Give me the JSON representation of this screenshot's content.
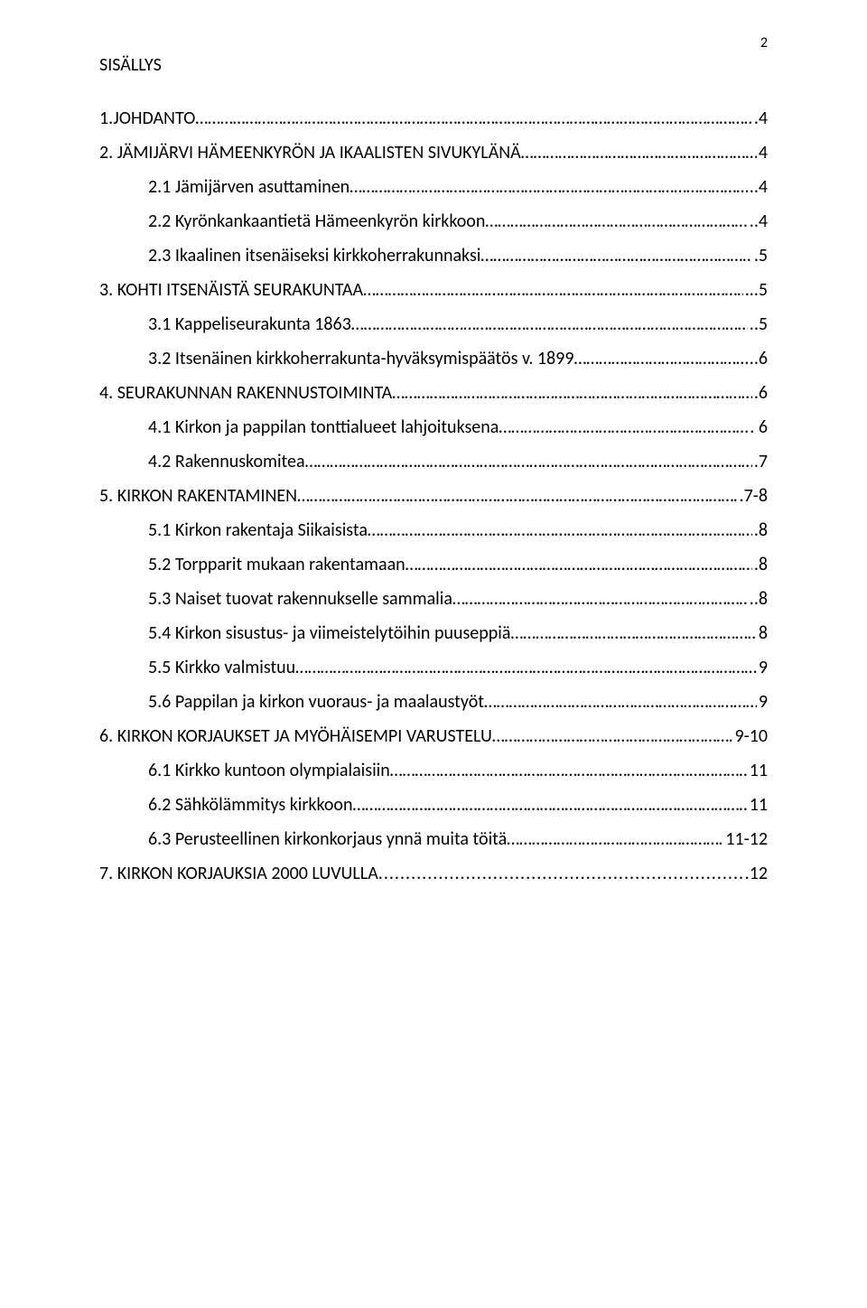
{
  "page_number": "2",
  "title": "SISÄLLYS",
  "entries": [
    {
      "level": 1,
      "label": "1.JOHDANTO",
      "page": ".4",
      "leader": "dots"
    },
    {
      "level": 1,
      "label": "2. JÄMIJÄRVI HÄMEENKYRÖN JA IKAALISTEN SIVUKYLÄNÄ",
      "page": "4",
      "leader": "dots"
    },
    {
      "level": 2,
      "label": "2.1 Jämijärven asuttaminen",
      "page": "..4",
      "leader": "dots"
    },
    {
      "level": 2,
      "label": "2.2 Kyrönkankaantietä Hämeenkyrön kirkkoon",
      "page": "..4",
      "leader": "dots"
    },
    {
      "level": 2,
      "label": "2.3 Ikaalinen itsenäiseksi kirkkoherrakunnaksi",
      "page": ".5",
      "leader": "dots"
    },
    {
      "level": 1,
      "label": "3. KOHTI ITSENÄISTÄ SEURAKUNTAA",
      "page": "...5",
      "leader": "dots"
    },
    {
      "level": 2,
      "label": "3.1 Kappeliseurakunta 1863",
      "page": "..5",
      "leader": "dots"
    },
    {
      "level": 2,
      "label": "3.2 Itsenäinen kirkkoherrakunta-hyväksymispäätös v. 1899",
      "page": "..6",
      "leader": "dots"
    },
    {
      "level": 1,
      "label": "4. SEURAKUNNAN RAKENNUSTOIMINTA",
      "page": ".6",
      "leader": "dots"
    },
    {
      "level": 2,
      "label": "4.1 Kirkon ja pappilan tonttialueet lahjoituksena",
      "page": ". 6",
      "leader": "dots"
    },
    {
      "level": 2,
      "label": "4.2 Rakennuskomitea",
      "page": ".7",
      "leader": "dots"
    },
    {
      "level": 1,
      "label": "5. KIRKON RAKENTAMINEN",
      "page": ".7-8",
      "leader": "dots"
    },
    {
      "level": 2,
      "label": "5.1 Kirkon rakentaja Siikaisista",
      "page": ".8",
      "leader": "dots"
    },
    {
      "level": 2,
      "label": "5.2 Torpparit mukaan rakentamaan",
      "page": ".8",
      "leader": "dots"
    },
    {
      "level": 2,
      "label": "5.3 Naiset tuovat rakennukselle sammalia",
      "page": "..8",
      "leader": "dots"
    },
    {
      "level": 2,
      "label": "5.4 Kirkon sisustus- ja viimeistelytöihin puuseppiä",
      "page": "8",
      "leader": "dots"
    },
    {
      "level": 2,
      "label": "5.5 Kirkko valmistuu",
      "page": "9",
      "leader": "dots"
    },
    {
      "level": 2,
      "label": "5.6 Pappilan ja kirkon vuoraus- ja maalaustyöt",
      "page": "9",
      "leader": "dots"
    },
    {
      "level": 1,
      "label": "6. KIRKON KORJAUKSET JA MYÖHÄISEMPI VARUSTELU",
      "page": " 9-10",
      "leader": "dots"
    },
    {
      "level": 2,
      "label": "6.1 Kirkko kuntoon olympialaisiin",
      "page": "11",
      "leader": "dots"
    },
    {
      "level": 2,
      "label": "6.2 Sähkölämmitys kirkkoon",
      "page": "11",
      "leader": "dots"
    },
    {
      "level": 2,
      "label": "6.3 Perusteellinen kirkonkorjaus ynnä muita töitä",
      "page": "11-12",
      "leader": "dots"
    },
    {
      "level": 1,
      "label": "7. KIRKON KORJAUKSIA 2000 LUVULLA",
      "page": ".12",
      "leader": "dotsp"
    }
  ]
}
